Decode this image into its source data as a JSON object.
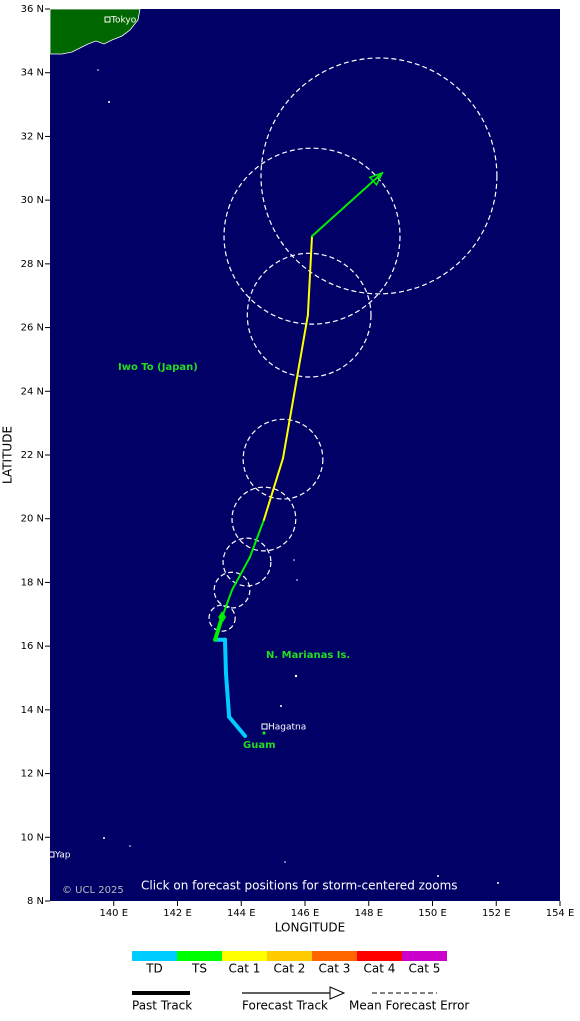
{
  "map": {
    "xlabel": "LONGITUDE",
    "ylabel": "LATITUDE",
    "xlim": [
      138,
      154
    ],
    "ylim": [
      8,
      36
    ],
    "xticks": [
      {
        "value": 140,
        "label": "140 E"
      },
      {
        "value": 142,
        "label": "142 E"
      },
      {
        "value": 144,
        "label": "144 E"
      },
      {
        "value": 146,
        "label": "146 E"
      },
      {
        "value": 148,
        "label": "148 E"
      },
      {
        "value": 150,
        "label": "150 E"
      },
      {
        "value": 152,
        "label": "152 E"
      },
      {
        "value": 154,
        "label": "154 E"
      }
    ],
    "yticks": [
      {
        "value": 8,
        "label": "8 N"
      },
      {
        "value": 10,
        "label": "10 N"
      },
      {
        "value": 12,
        "label": "12 N"
      },
      {
        "value": 14,
        "label": "14 N"
      },
      {
        "value": 16,
        "label": "16 N"
      },
      {
        "value": 18,
        "label": "18 N"
      },
      {
        "value": 20,
        "label": "20 N"
      },
      {
        "value": 22,
        "label": "22 N"
      },
      {
        "value": 24,
        "label": "24 N"
      },
      {
        "value": 26,
        "label": "26 N"
      },
      {
        "value": 28,
        "label": "28 N"
      },
      {
        "value": 30,
        "label": "30 N"
      },
      {
        "value": 32,
        "label": "32 N"
      },
      {
        "value": 34,
        "label": "34 N"
      },
      {
        "value": 36,
        "label": "36 N"
      }
    ]
  },
  "places": {
    "tokyo": "Tokyo",
    "hagatna": "Hagatna",
    "yap": "Yap"
  },
  "regions": {
    "iwo_to": "Iwo To (Japan)",
    "marianas": "N. Marianas Is.",
    "guam": "Guam"
  },
  "copyright": "© UCL 2025",
  "note": "Click on forecast positions for storm-centered zooms",
  "past_track": {
    "lon": [
      144.12,
      143.62,
      143.52,
      143.49,
      143.18,
      143.4
    ],
    "lat": [
      13.18,
      13.78,
      15.16,
      16.2,
      16.2,
      16.91
    ],
    "segment_colors": [
      "#00ccff",
      "#00ccff",
      "#00ccff",
      "#00ccff",
      "#00ee00"
    ]
  },
  "forecast_track": {
    "lon": [
      143.4,
      143.71,
      144.27,
      144.71,
      145.31,
      146.09,
      146.22,
      148.42
    ],
    "lat": [
      16.91,
      17.76,
      18.79,
      19.96,
      21.9,
      26.39,
      28.87,
      30.85
    ],
    "segment_colors": [
      "#00ee00",
      "#00ee00",
      "#00ee00",
      "#ffff00",
      "#ffff00",
      "#ffff00",
      "#00ee00"
    ]
  },
  "error_circles": {
    "lon": [
      143.4,
      143.71,
      144.18,
      144.71,
      145.31,
      146.13,
      146.22,
      148.32
    ],
    "lat": [
      16.88,
      17.76,
      18.64,
      19.99,
      21.87,
      26.39,
      28.87,
      30.76
    ],
    "radius": [
      0.41,
      0.56,
      0.75,
      1.0,
      1.25,
      1.94,
      2.76,
      3.7
    ]
  },
  "legend": {
    "scale": [
      {
        "label": "TD",
        "color": "#00ccff"
      },
      {
        "label": "TS",
        "color": "#00ff00"
      },
      {
        "label": "Cat 1",
        "color": "#ffff00"
      },
      {
        "label": "Cat 2",
        "color": "#ffcc00"
      },
      {
        "label": "Cat 3",
        "color": "#ff6600"
      },
      {
        "label": "Cat 4",
        "color": "#ff0000"
      },
      {
        "label": "Cat 5",
        "color": "#cc00cc"
      }
    ],
    "keys": [
      "Past Track",
      "Forecast Track",
      "Mean Forecast Error"
    ]
  }
}
